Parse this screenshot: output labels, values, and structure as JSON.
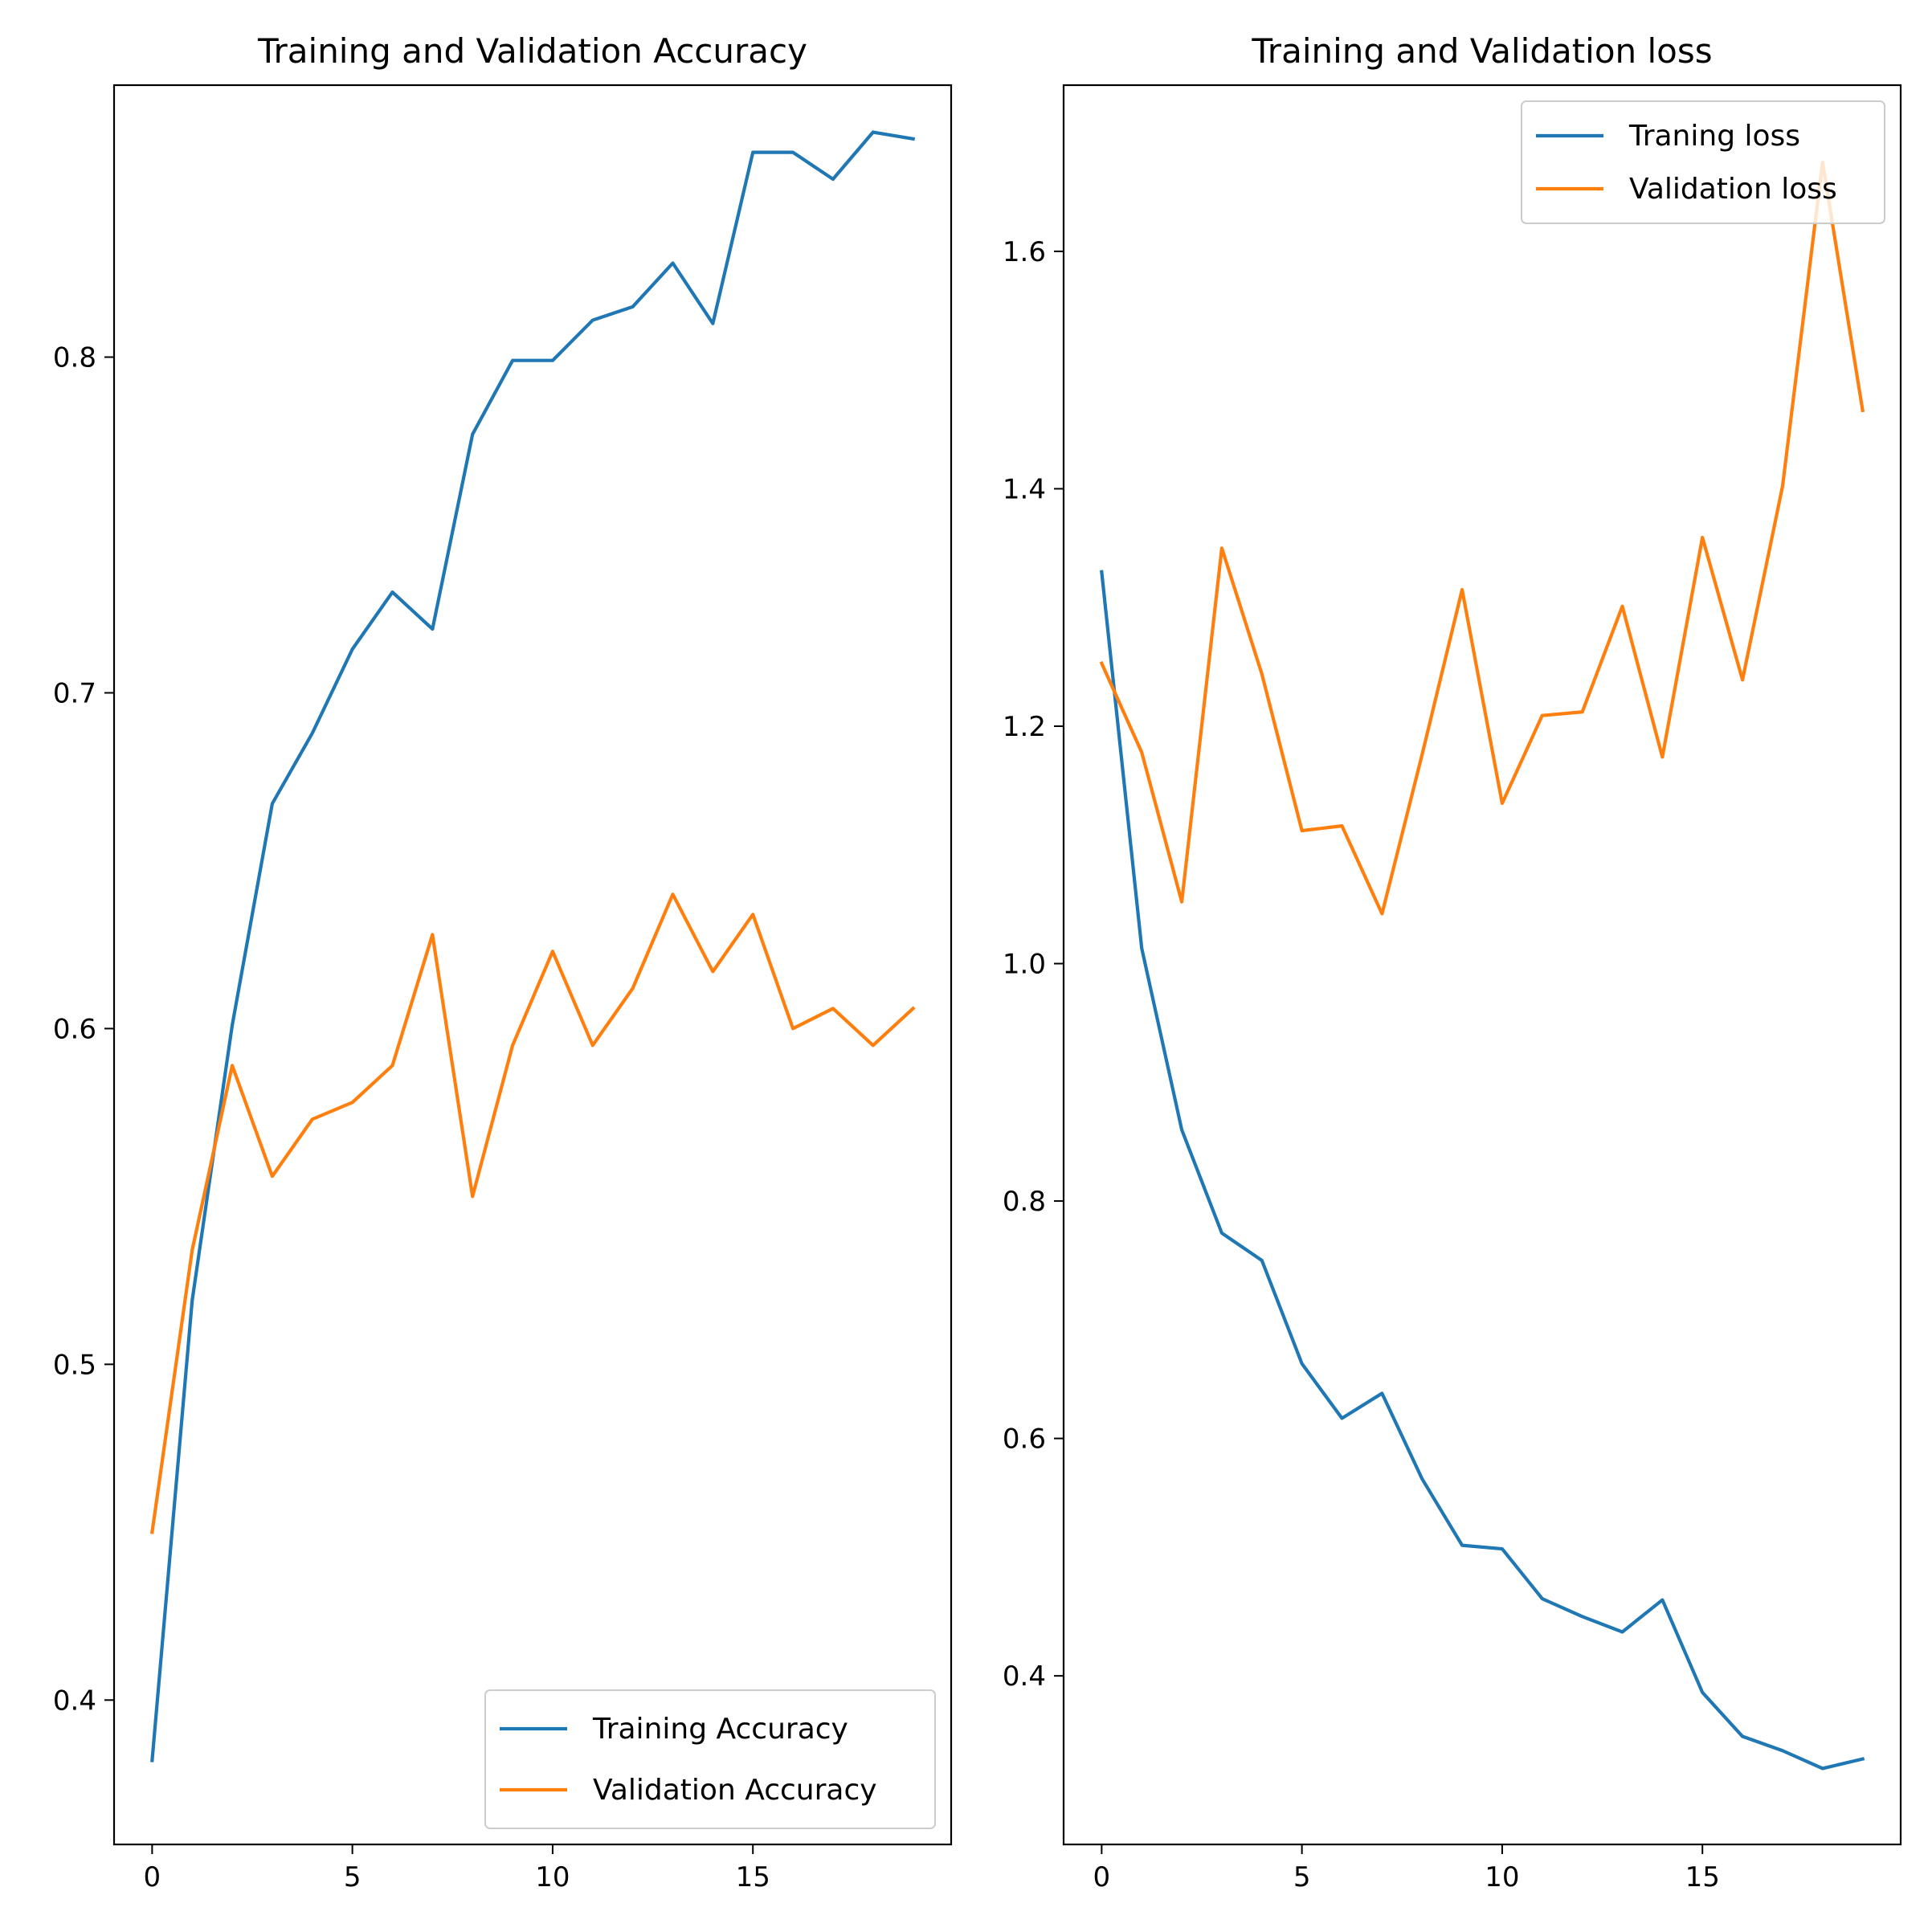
{
  "chart_data": [
    {
      "type": "line",
      "title": "Training and Validation Accuracy",
      "xlabel": "",
      "ylabel": "",
      "xlim": [
        -0.95,
        19.95
      ],
      "ylim": [
        0.357,
        0.881
      ],
      "xticks": [
        0,
        5,
        10,
        15
      ],
      "xtick_labels": [
        "0",
        "5",
        "10",
        "15"
      ],
      "yticks": [
        0.4,
        0.5,
        0.6,
        0.7,
        0.8
      ],
      "ytick_labels": [
        "0.4",
        "0.5",
        "0.6",
        "0.7",
        "0.8"
      ],
      "grid": false,
      "legend_position": "lower-right",
      "x": [
        0,
        1,
        2,
        3,
        4,
        5,
        6,
        7,
        8,
        9,
        10,
        11,
        12,
        13,
        14,
        15,
        16,
        17,
        18,
        19
      ],
      "series": [
        {
          "name": "Training Accuracy",
          "color": "#1f77b4",
          "values": [
            0.382,
            0.519,
            0.601,
            0.667,
            0.688,
            0.713,
            0.73,
            0.719,
            0.777,
            0.799,
            0.799,
            0.811,
            0.815,
            0.828,
            0.81,
            0.861,
            0.861,
            0.853,
            0.867,
            0.865
          ]
        },
        {
          "name": "Validation Accuracy",
          "color": "#ff7f0e",
          "values": [
            0.45,
            0.534,
            0.589,
            0.556,
            0.573,
            0.578,
            0.589,
            0.628,
            0.55,
            0.595,
            0.623,
            0.595,
            0.612,
            0.64,
            0.617,
            0.634,
            0.6,
            0.606,
            0.595,
            0.606
          ]
        }
      ]
    },
    {
      "type": "line",
      "title": "Training and Validation loss",
      "xlabel": "",
      "ylabel": "",
      "xlim": [
        -0.95,
        19.95
      ],
      "ylim": [
        0.258,
        1.74
      ],
      "xticks": [
        0,
        5,
        10,
        15
      ],
      "xtick_labels": [
        "0",
        "5",
        "10",
        "15"
      ],
      "yticks": [
        0.4,
        0.6,
        0.8,
        1.0,
        1.2,
        1.4,
        1.6
      ],
      "ytick_labels": [
        "0.4",
        "0.6",
        "0.8",
        "1.0",
        "1.2",
        "1.4",
        "1.6"
      ],
      "grid": false,
      "legend_position": "upper-right",
      "x": [
        0,
        1,
        2,
        3,
        4,
        5,
        6,
        7,
        8,
        9,
        10,
        11,
        12,
        13,
        14,
        15,
        16,
        17,
        18,
        19
      ],
      "series": [
        {
          "name": "Traning loss",
          "color": "#1f77b4",
          "values": [
            1.33,
            1.013,
            0.86,
            0.773,
            0.75,
            0.663,
            0.617,
            0.638,
            0.566,
            0.51,
            0.507,
            0.465,
            0.45,
            0.437,
            0.464,
            0.386,
            0.349,
            0.337,
            0.322,
            0.33
          ]
        },
        {
          "name": "Validation loss",
          "color": "#ff7f0e",
          "values": [
            1.253,
            1.178,
            1.052,
            1.35,
            1.244,
            1.112,
            1.116,
            1.042,
            1.176,
            1.315,
            1.135,
            1.209,
            1.212,
            1.301,
            1.174,
            1.359,
            1.239,
            1.402,
            1.675,
            1.466
          ]
        }
      ]
    }
  ]
}
